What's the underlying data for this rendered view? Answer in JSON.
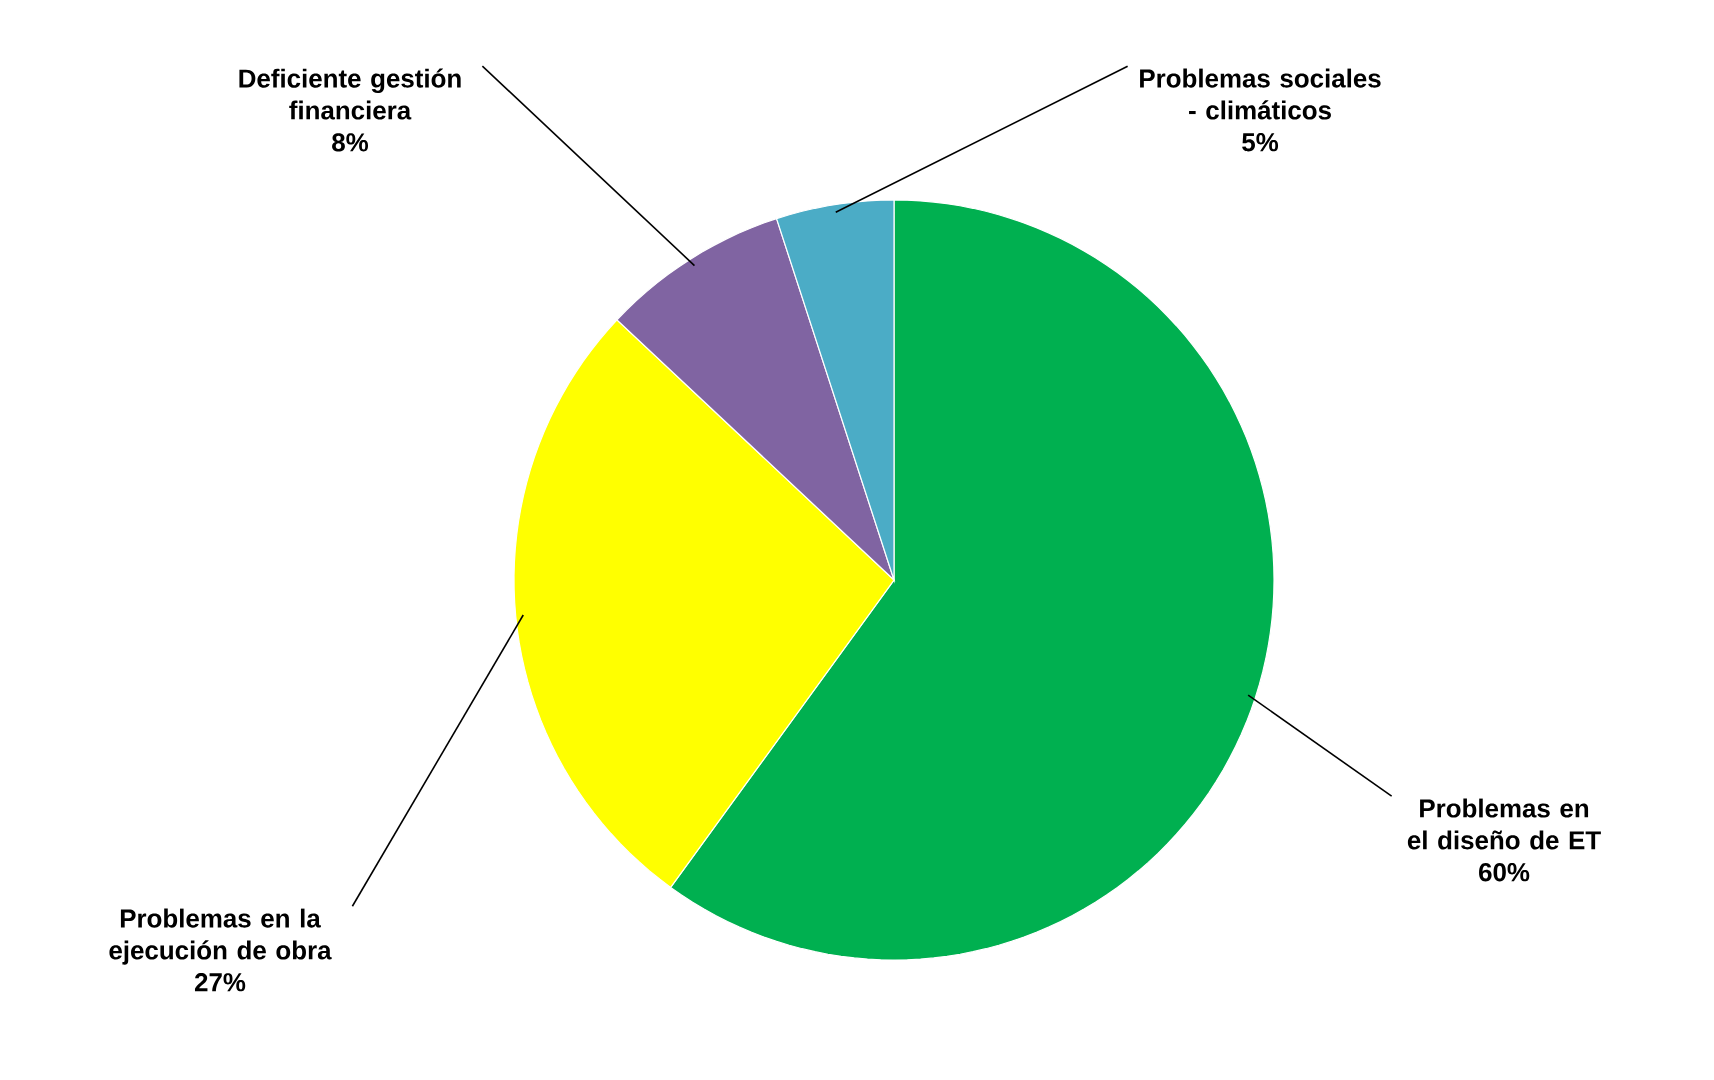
{
  "chart_data": {
    "type": "pie",
    "categories": [
      "Problemas en el diseño de ET",
      "Problemas en la ejecución de obra",
      "Deficiente gestión financiera",
      "Problemas sociales - climáticos"
    ],
    "values": [
      60,
      27,
      8,
      5
    ],
    "colors": [
      "#00b050",
      "#ffff00",
      "#8064a2",
      "#4bacc6"
    ],
    "value_labels": [
      "60%",
      "27%",
      "8%",
      "5%"
    ]
  }
}
